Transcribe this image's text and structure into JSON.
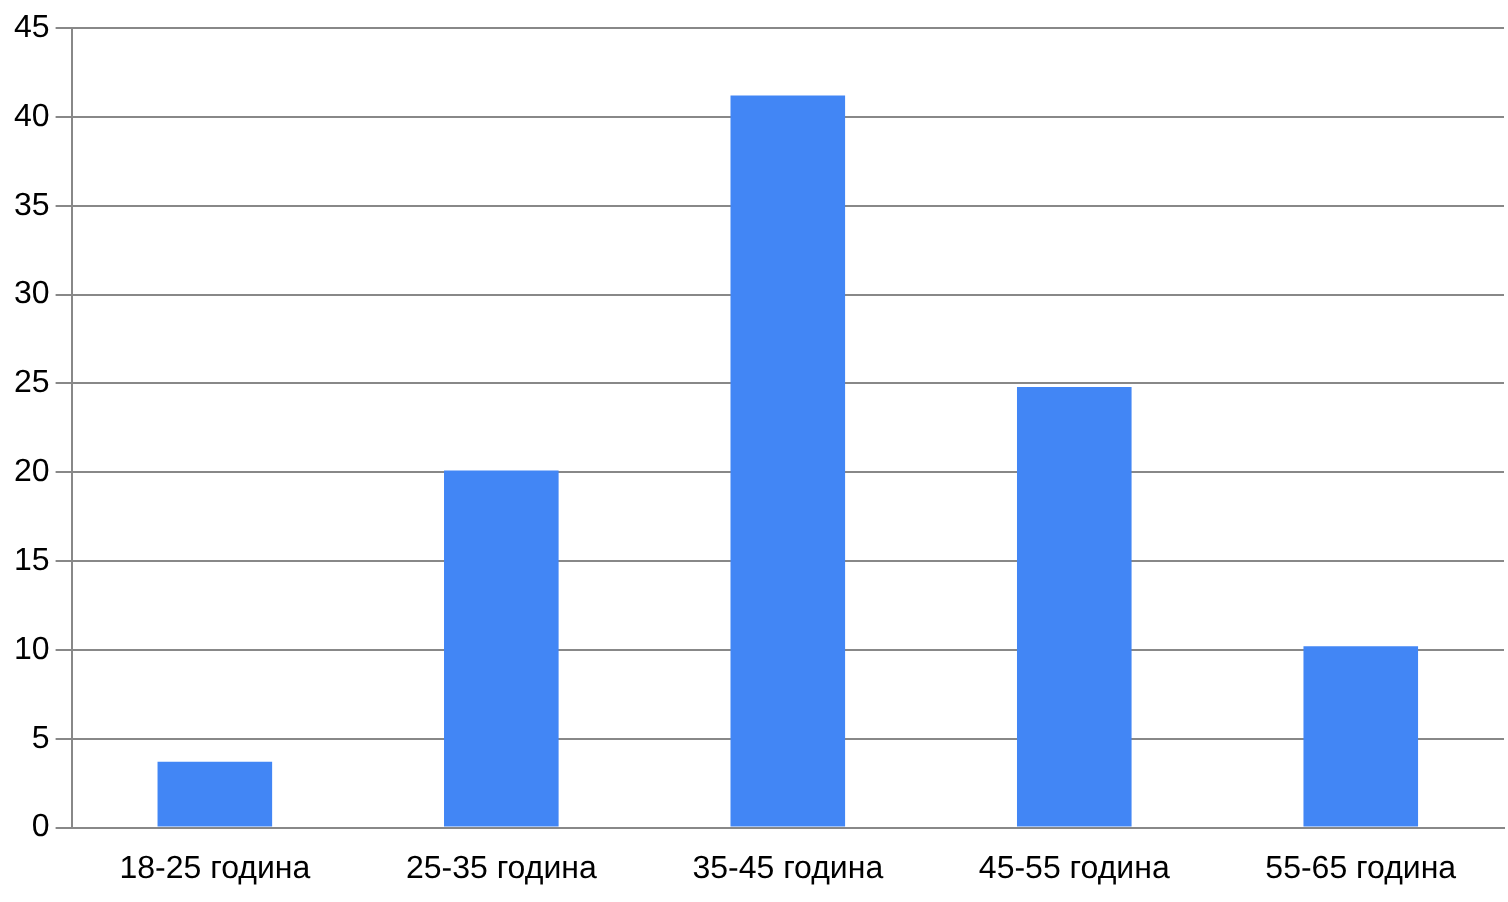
{
  "chart_data": {
    "type": "bar",
    "categories": [
      "18-25 година",
      "25-35 година",
      "35-45 година",
      "45-55 година",
      "55-65 година"
    ],
    "values": [
      3.7,
      20.1,
      41.2,
      24.8,
      10.2
    ],
    "color": "#4286f5",
    "ylim": [
      0,
      45
    ],
    "yticks": [
      0,
      5,
      10,
      15,
      20,
      25,
      30,
      35,
      40,
      45
    ],
    "grid": "y",
    "legend": false
  }
}
